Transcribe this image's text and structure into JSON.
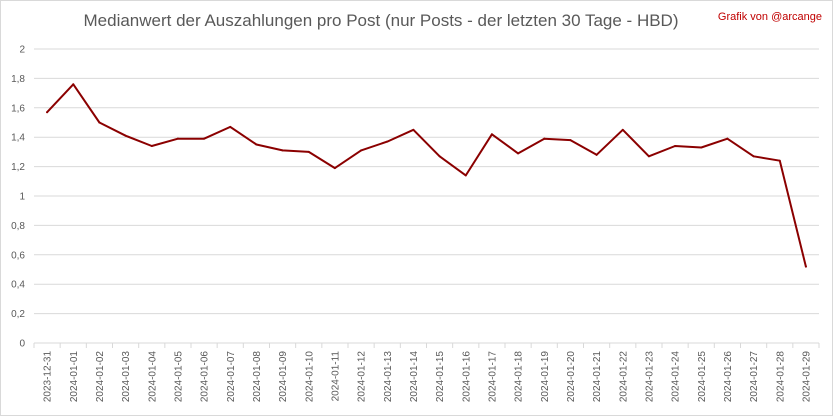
{
  "title": "Medianwert der Auszahlungen pro Post (nur Posts - der letzten 30 Tage - HBD)",
  "credit": "Grafik von @arcange",
  "colors": {
    "line": "#8b0000",
    "grid": "#d9d9d9",
    "text": "#595959",
    "credit": "#c00000"
  },
  "chart_data": {
    "type": "line",
    "title": "Medianwert der Auszahlungen pro Post (nur Posts - der letzten 30 Tage - HBD)",
    "xlabel": "",
    "ylabel": "",
    "ylim": [
      0,
      2
    ],
    "yticks": [
      "0",
      "0,2",
      "0,4",
      "0,6",
      "0,8",
      "1",
      "1,2",
      "1,4",
      "1,6",
      "1,8",
      "2"
    ],
    "grid": true,
    "legend": "none",
    "categories": [
      "2023-12-31",
      "2024-01-01",
      "2024-01-02",
      "2024-01-03",
      "2024-01-04",
      "2024-01-05",
      "2024-01-06",
      "2024-01-07",
      "2024-01-08",
      "2024-01-09",
      "2024-01-10",
      "2024-01-11",
      "2024-01-12",
      "2024-01-13",
      "2024-01-14",
      "2024-01-15",
      "2024-01-16",
      "2024-01-17",
      "2024-01-18",
      "2024-01-19",
      "2024-01-20",
      "2024-01-21",
      "2024-01-22",
      "2024-01-23",
      "2024-01-24",
      "2024-01-25",
      "2024-01-26",
      "2024-01-27",
      "2024-01-28",
      "2024-01-29"
    ],
    "series": [
      {
        "values": [
          1.57,
          1.76,
          1.5,
          1.41,
          1.34,
          1.39,
          1.39,
          1.47,
          1.35,
          1.31,
          1.3,
          1.19,
          1.31,
          1.37,
          1.45,
          1.27,
          1.14,
          1.42,
          1.29,
          1.39,
          1.38,
          1.28,
          1.45,
          1.27,
          1.34,
          1.33,
          1.39,
          1.27,
          1.24,
          0.52
        ]
      }
    ]
  }
}
